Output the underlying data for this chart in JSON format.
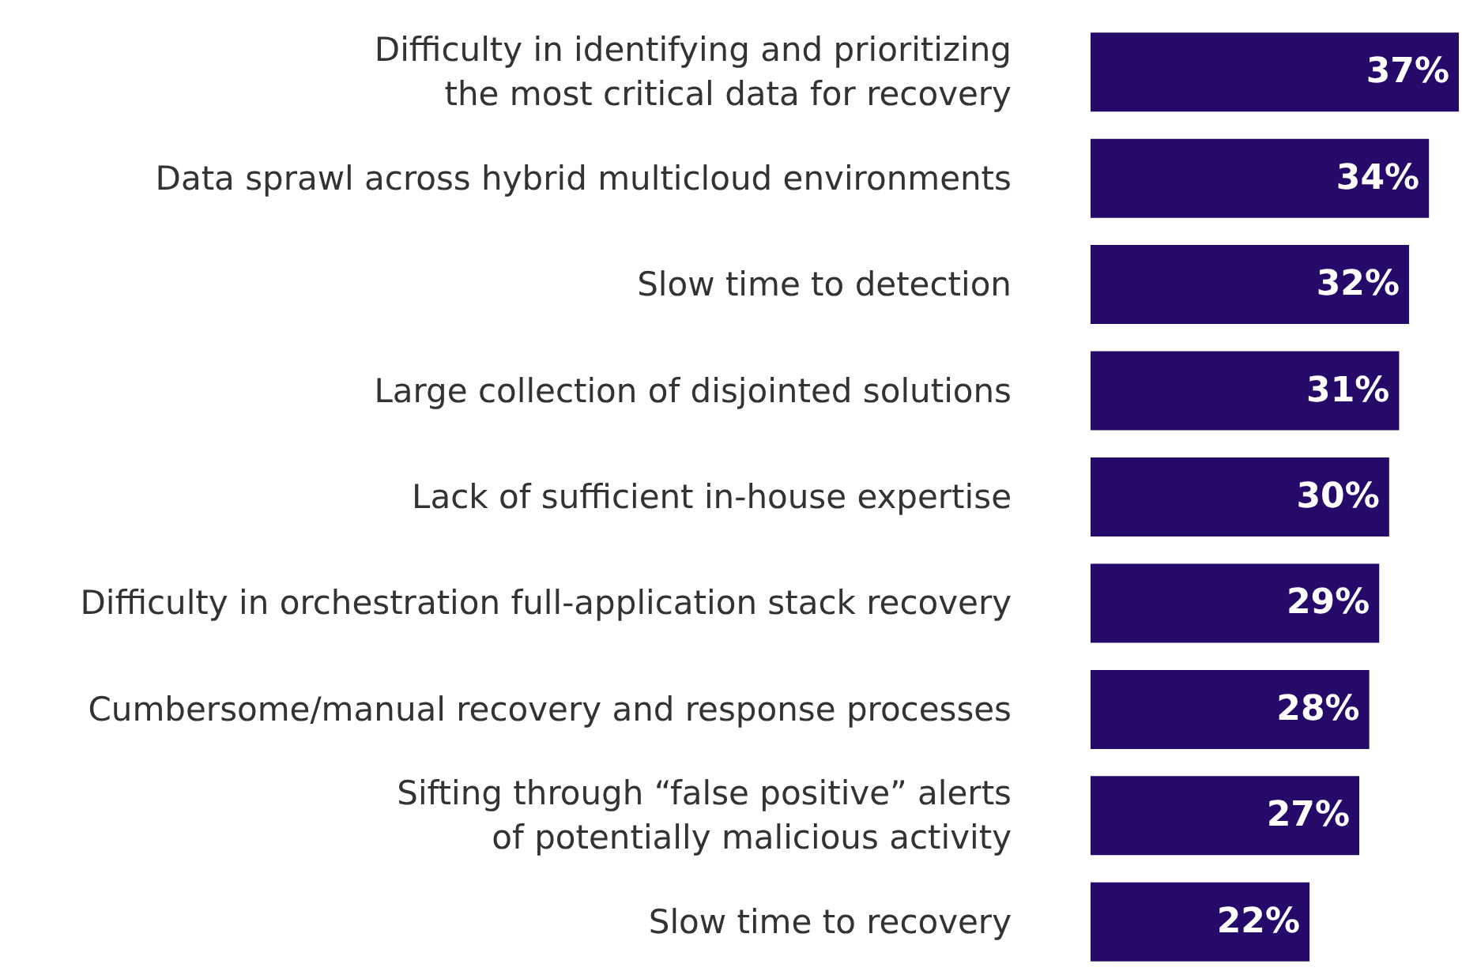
{
  "chart_data": {
    "type": "bar",
    "orientation": "horizontal",
    "categories": [
      "Difficulty in identifying and prioritizing\nthe most critical data for recovery",
      "Data sprawl across hybrid multicloud environments",
      "Slow time to detection",
      "Large collection of disjointed solutions",
      "Lack of sufficient in-house expertise",
      "Difficulty in orchestration full-application stack recovery",
      "Cumbersome/manual recovery and response processes",
      "Sifting through “false positive” alerts\nof potentially malicious activity",
      "Slow time to recovery"
    ],
    "values": [
      37,
      34,
      32,
      31,
      30,
      29,
      28,
      27,
      22
    ],
    "value_labels": [
      "37%",
      "34%",
      "32%",
      "31%",
      "30%",
      "29%",
      "28%",
      "27%",
      "22%"
    ],
    "color": "#260a6a"
  }
}
